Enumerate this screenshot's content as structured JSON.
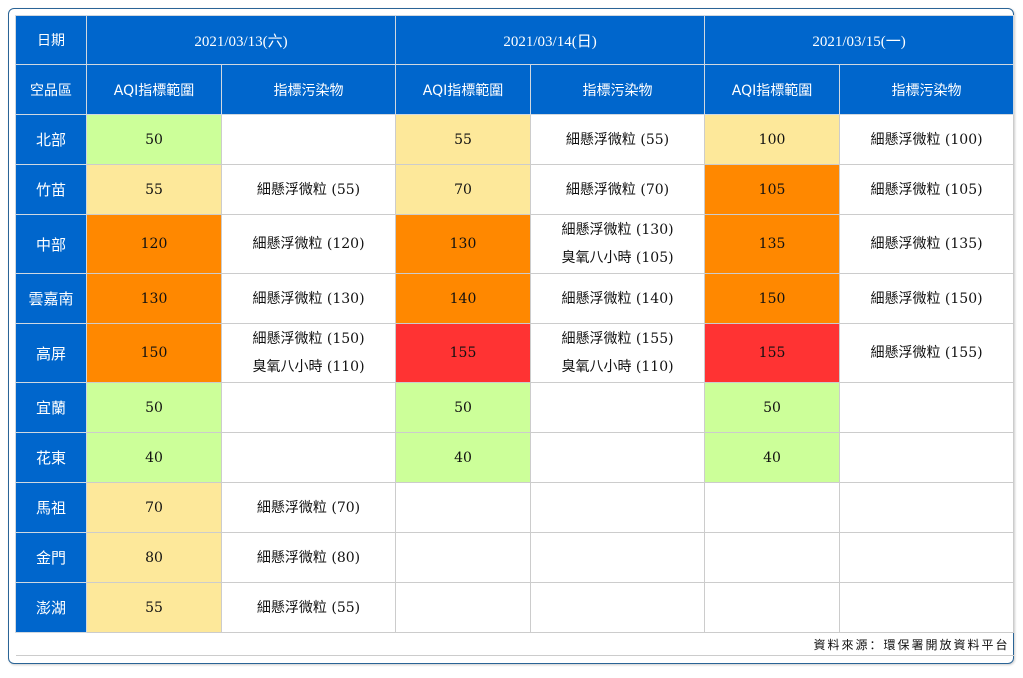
{
  "header": {
    "date_label": "日期",
    "region_label": "空品區",
    "dates": [
      "2021/03/13(六)",
      "2021/03/14(日)",
      "2021/03/15(一)"
    ],
    "aqi_label": "AQI指標範圍",
    "pollutant_label": "指標污染物"
  },
  "colors": {
    "good": "#ccff99",
    "moderate": "#fde89a",
    "sensitive": "#ff8800",
    "unhealthy": "#ff3333",
    "header": "#0066cc"
  },
  "rows": [
    {
      "region": "北部",
      "days": [
        {
          "aqi": "50",
          "level": "good",
          "pollutants": []
        },
        {
          "aqi": "55",
          "level": "moderate",
          "pollutants": [
            "細懸浮微粒 (55)"
          ]
        },
        {
          "aqi": "100",
          "level": "moderate",
          "pollutants": [
            "細懸浮微粒 (100)"
          ]
        }
      ]
    },
    {
      "region": "竹苗",
      "days": [
        {
          "aqi": "55",
          "level": "moderate",
          "pollutants": [
            "細懸浮微粒 (55)"
          ]
        },
        {
          "aqi": "70",
          "level": "moderate",
          "pollutants": [
            "細懸浮微粒 (70)"
          ]
        },
        {
          "aqi": "105",
          "level": "sensitive",
          "pollutants": [
            "細懸浮微粒 (105)"
          ]
        }
      ]
    },
    {
      "region": "中部",
      "days": [
        {
          "aqi": "120",
          "level": "sensitive",
          "pollutants": [
            "細懸浮微粒 (120)"
          ]
        },
        {
          "aqi": "130",
          "level": "sensitive",
          "pollutants": [
            "細懸浮微粒 (130)",
            "臭氧八小時 (105)"
          ]
        },
        {
          "aqi": "135",
          "level": "sensitive",
          "pollutants": [
            "細懸浮微粒 (135)"
          ]
        }
      ]
    },
    {
      "region": "雲嘉南",
      "days": [
        {
          "aqi": "130",
          "level": "sensitive",
          "pollutants": [
            "細懸浮微粒 (130)"
          ]
        },
        {
          "aqi": "140",
          "level": "sensitive",
          "pollutants": [
            "細懸浮微粒 (140)"
          ]
        },
        {
          "aqi": "150",
          "level": "sensitive",
          "pollutants": [
            "細懸浮微粒 (150)"
          ]
        }
      ]
    },
    {
      "region": "高屏",
      "days": [
        {
          "aqi": "150",
          "level": "sensitive",
          "pollutants": [
            "細懸浮微粒 (150)",
            "臭氧八小時 (110)"
          ]
        },
        {
          "aqi": "155",
          "level": "unhealthy",
          "pollutants": [
            "細懸浮微粒 (155)",
            "臭氧八小時 (110)"
          ]
        },
        {
          "aqi": "155",
          "level": "unhealthy",
          "pollutants": [
            "細懸浮微粒 (155)"
          ]
        }
      ]
    },
    {
      "region": "宜蘭",
      "days": [
        {
          "aqi": "50",
          "level": "good",
          "pollutants": []
        },
        {
          "aqi": "50",
          "level": "good",
          "pollutants": []
        },
        {
          "aqi": "50",
          "level": "good",
          "pollutants": []
        }
      ]
    },
    {
      "region": "花東",
      "days": [
        {
          "aqi": "40",
          "level": "good",
          "pollutants": []
        },
        {
          "aqi": "40",
          "level": "good",
          "pollutants": []
        },
        {
          "aqi": "40",
          "level": "good",
          "pollutants": []
        }
      ]
    },
    {
      "region": "馬祖",
      "days": [
        {
          "aqi": "70",
          "level": "moderate",
          "pollutants": [
            "細懸浮微粒 (70)"
          ]
        },
        {
          "aqi": "",
          "level": "none",
          "pollutants": []
        },
        {
          "aqi": "",
          "level": "none",
          "pollutants": []
        }
      ]
    },
    {
      "region": "金門",
      "days": [
        {
          "aqi": "80",
          "level": "moderate",
          "pollutants": [
            "細懸浮微粒 (80)"
          ]
        },
        {
          "aqi": "",
          "level": "none",
          "pollutants": []
        },
        {
          "aqi": "",
          "level": "none",
          "pollutants": []
        }
      ]
    },
    {
      "region": "澎湖",
      "days": [
        {
          "aqi": "55",
          "level": "moderate",
          "pollutants": [
            "細懸浮微粒 (55)"
          ]
        },
        {
          "aqi": "",
          "level": "none",
          "pollutants": []
        },
        {
          "aqi": "",
          "level": "none",
          "pollutants": []
        }
      ]
    }
  ],
  "footer": {
    "source": "資料來源：環保署開放資料平台"
  }
}
